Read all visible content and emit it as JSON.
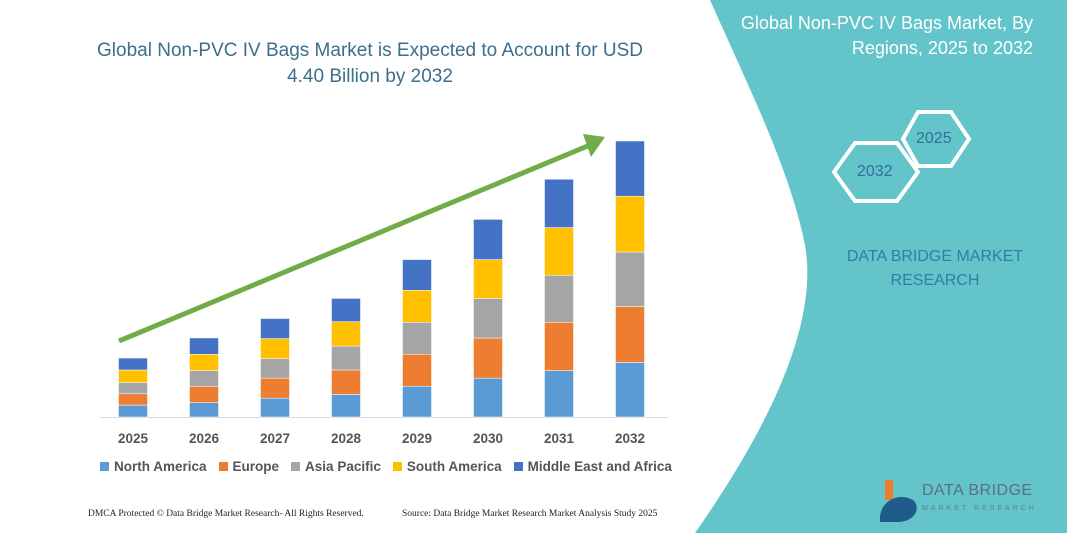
{
  "header": {
    "title": "Global Non-PVC IV Bags Market is Expected to Account for USD 4.40 Billion by 2032",
    "side_title": "Global Non-PVC IV Bags Market, By Regions, 2025 to 2032",
    "hex_2025": "2025",
    "hex_2032": "2032",
    "brand": "DATA BRIDGE MARKET RESEARCH"
  },
  "footer": {
    "dmca": "DMCA Protected © Data Bridge Market Research- All Rights Reserved.",
    "source": "Source: Data Bridge Market Research Market Analysis Study 2025",
    "logo": "DATA BRIDGE",
    "logo_sub": "MARKET RESEARCH"
  },
  "colors": {
    "panel": "#63c4c9",
    "arrow": "#70ad47"
  },
  "chart_data": {
    "type": "bar",
    "stacked": true,
    "title": "Global Non-PVC IV Bags Market is Expected to Account for USD 4.40 Billion by 2032",
    "categories": [
      "2025",
      "2026",
      "2027",
      "2028",
      "2029",
      "2030",
      "2031",
      "2032"
    ],
    "legend_position": "bottom",
    "grid": false,
    "series": [
      {
        "name": "North America",
        "color": "#5b9bd5",
        "values": [
          0.19,
          0.23,
          0.3,
          0.36,
          0.49,
          0.62,
          0.74,
          0.87
        ]
      },
      {
        "name": "Europe",
        "color": "#ed7d31",
        "values": [
          0.18,
          0.26,
          0.32,
          0.39,
          0.51,
          0.64,
          0.77,
          0.89
        ]
      },
      {
        "name": "Asia Pacific",
        "color": "#a5a5a5",
        "values": [
          0.18,
          0.25,
          0.31,
          0.38,
          0.51,
          0.63,
          0.75,
          0.87
        ]
      },
      {
        "name": "South America",
        "color": "#ffc000",
        "values": [
          0.2,
          0.26,
          0.32,
          0.39,
          0.51,
          0.62,
          0.76,
          0.89
        ]
      },
      {
        "name": "Middle East and Africa",
        "color": "#4472c4",
        "values": [
          0.19,
          0.26,
          0.32,
          0.37,
          0.49,
          0.64,
          0.77,
          0.88
        ]
      }
    ]
  }
}
